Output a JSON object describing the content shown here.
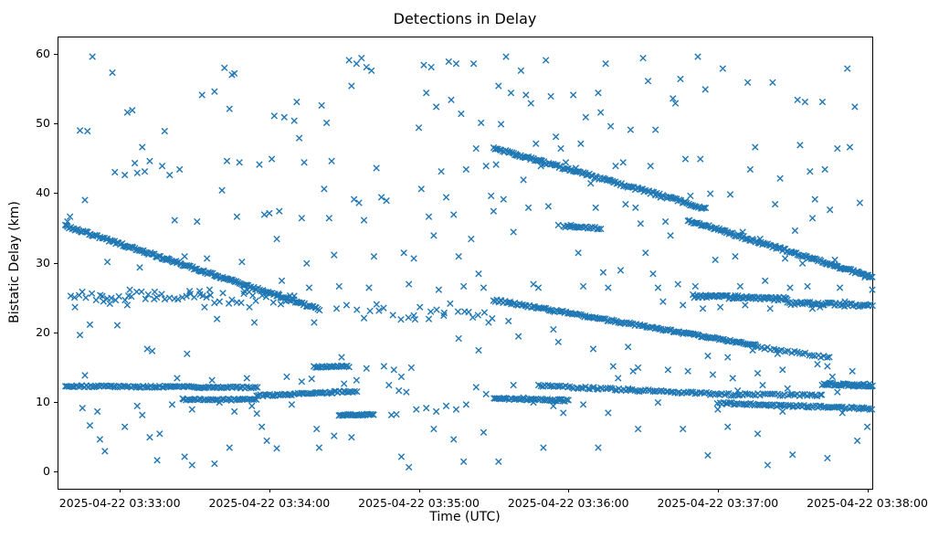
{
  "chart_data": {
    "type": "scatter",
    "title": "Detections in Delay",
    "xlabel": "Time (UTC)",
    "ylabel": "Bistatic Delay (km)",
    "marker": "x",
    "marker_color": "#1f77b4",
    "grid": false,
    "legend": null,
    "x_axis": {
      "unit": "seconds relative to 2025-04-22 03:33:00 UTC",
      "lim": [
        -25,
        302
      ],
      "ticks": [
        {
          "t": 0,
          "label": "2025-04-22 03:33:00"
        },
        {
          "t": 60,
          "label": "2025-04-22 03:34:00"
        },
        {
          "t": 120,
          "label": "2025-04-22 03:35:00"
        },
        {
          "t": 180,
          "label": "2025-04-22 03:36:00"
        },
        {
          "t": 240,
          "label": "2025-04-22 03:37:00"
        },
        {
          "t": 300,
          "label": "2025-04-22 03:38:00"
        }
      ]
    },
    "y_axis": {
      "lim": [
        -2.5,
        62.5
      ],
      "ticks": [
        0,
        10,
        20,
        30,
        40,
        50,
        60
      ]
    },
    "tracks": [
      {
        "t0": -22,
        "t1": 80,
        "y0": 35.3,
        "y1": 23.3,
        "n": 180,
        "jitter": 0.18
      },
      {
        "t0": -22,
        "t1": 55,
        "y0": 12.25,
        "y1": 12.05,
        "n": 100,
        "jitter": 0.12
      },
      {
        "t0": 25,
        "t1": 55,
        "y0": 10.35,
        "y1": 10.3,
        "n": 40,
        "jitter": 0.12
      },
      {
        "t0": 55,
        "t1": 95,
        "y0": 10.9,
        "y1": 11.5,
        "n": 55,
        "jitter": 0.15
      },
      {
        "t0": 78,
        "t1": 92,
        "y0": 15.0,
        "y1": 15.1,
        "n": 22,
        "jitter": 0.12
      },
      {
        "t0": 88,
        "t1": 102,
        "y0": 8.1,
        "y1": 8.15,
        "n": 26,
        "jitter": 0.1
      },
      {
        "t0": 150,
        "t1": 235,
        "y0": 46.5,
        "y1": 37.8,
        "n": 140,
        "jitter": 0.2
      },
      {
        "t0": 150,
        "t1": 255,
        "y0": 24.6,
        "y1": 18.1,
        "n": 160,
        "jitter": 0.15
      },
      {
        "t0": 255,
        "t1": 285,
        "y0": 18.0,
        "y1": 16.3,
        "n": 26,
        "jitter": 0.15
      },
      {
        "t0": 228,
        "t1": 302,
        "y0": 36.1,
        "y1": 27.9,
        "n": 130,
        "jitter": 0.18
      },
      {
        "t0": 230,
        "t1": 268,
        "y0": 25.2,
        "y1": 24.8,
        "n": 70,
        "jitter": 0.25
      },
      {
        "t0": 268,
        "t1": 302,
        "y0": 24.2,
        "y1": 23.8,
        "n": 50,
        "jitter": 0.25
      },
      {
        "t0": 168,
        "t1": 248,
        "y0": 12.3,
        "y1": 11.0,
        "n": 90,
        "jitter": 0.18
      },
      {
        "t0": 248,
        "t1": 282,
        "y0": 11.05,
        "y1": 10.95,
        "n": 35,
        "jitter": 0.15
      },
      {
        "t0": 240,
        "t1": 302,
        "y0": 9.8,
        "y1": 9.0,
        "n": 80,
        "jitter": 0.15
      },
      {
        "t0": 282,
        "t1": 302,
        "y0": 12.6,
        "y1": 12.3,
        "n": 40,
        "jitter": 0.2
      },
      {
        "t0": 150,
        "t1": 180,
        "y0": 10.5,
        "y1": 10.2,
        "n": 45,
        "jitter": 0.15
      },
      {
        "t0": 178,
        "t1": 193,
        "y0": 35.2,
        "y1": 34.9,
        "n": 22,
        "jitter": 0.15
      },
      {
        "t0": -20,
        "t1": 70,
        "y0": 25.1,
        "y1": 24.9,
        "n": 55,
        "jitter": 0.9
      },
      {
        "t0": 95,
        "t1": 150,
        "y0": 22.8,
        "y1": 23.0,
        "n": 20,
        "jitter": 1.2
      }
    ],
    "points": [
      [
        -11,
        59.6
      ],
      [
        -16,
        49
      ],
      [
        -13,
        48.9
      ],
      [
        -20,
        36.6
      ],
      [
        -21,
        35.9
      ],
      [
        -14,
        39
      ],
      [
        -18,
        23.6
      ],
      [
        -12,
        21.1
      ],
      [
        -16,
        19.6
      ],
      [
        -14,
        13.8
      ],
      [
        -15,
        9.1
      ],
      [
        -9,
        8.6
      ],
      [
        -12,
        6.6
      ],
      [
        -8,
        4.6
      ],
      [
        -6,
        2.9
      ],
      [
        -3,
        57.3
      ],
      [
        -2,
        43
      ],
      [
        -5,
        30.1
      ],
      [
        -1,
        21
      ],
      [
        -7,
        25.2
      ],
      [
        -4,
        24.1
      ],
      [
        3,
        51.6
      ],
      [
        5,
        51.9
      ],
      [
        2,
        42.6
      ],
      [
        7,
        42.9
      ],
      [
        9,
        46.6
      ],
      [
        6,
        44.3
      ],
      [
        12,
        44.6
      ],
      [
        10,
        43.1
      ],
      [
        8,
        29.3
      ],
      [
        4,
        26.1
      ],
      [
        14,
        25.8
      ],
      [
        3,
        23.9
      ],
      [
        11,
        17.6
      ],
      [
        13,
        17.3
      ],
      [
        7,
        9.4
      ],
      [
        9,
        8.1
      ],
      [
        2,
        6.4
      ],
      [
        12,
        4.9
      ],
      [
        15,
        1.6
      ],
      [
        18,
        48.9
      ],
      [
        17,
        43.9
      ],
      [
        20,
        42.6
      ],
      [
        24,
        43.4
      ],
      [
        22,
        36.1
      ],
      [
        19,
        30.4
      ],
      [
        26,
        30.9
      ],
      [
        28,
        25.9
      ],
      [
        27,
        16.9
      ],
      [
        23,
        13.4
      ],
      [
        21,
        9.6
      ],
      [
        29,
        8.9
      ],
      [
        16,
        5.4
      ],
      [
        26,
        2.1
      ],
      [
        29,
        0.9
      ],
      [
        33,
        54.1
      ],
      [
        38,
        54.6
      ],
      [
        31,
        35.9
      ],
      [
        35,
        30.6
      ],
      [
        32,
        25.9
      ],
      [
        36,
        26.1
      ],
      [
        34,
        23.6
      ],
      [
        39,
        21.9
      ],
      [
        37,
        13.1
      ],
      [
        40,
        9.9
      ],
      [
        42,
        58
      ],
      [
        45,
        57
      ],
      [
        46,
        57.2
      ],
      [
        44,
        52.1
      ],
      [
        48,
        44.4
      ],
      [
        43,
        44.6
      ],
      [
        41,
        40.4
      ],
      [
        47,
        36.6
      ],
      [
        49,
        30.1
      ],
      [
        50,
        25.9
      ],
      [
        52,
        23.6
      ],
      [
        51,
        13.4
      ],
      [
        53,
        9.4
      ],
      [
        55,
        8.3
      ],
      [
        57,
        6.4
      ],
      [
        59,
        4.4
      ],
      [
        54,
        21.4
      ],
      [
        58,
        36.9
      ],
      [
        56,
        44.1
      ],
      [
        60,
        37.1
      ],
      [
        46,
        8.6
      ],
      [
        38,
        1.1
      ],
      [
        44,
        3.4
      ],
      [
        62,
        51.1
      ],
      [
        66,
        50.9
      ],
      [
        61,
        44.9
      ],
      [
        64,
        37.4
      ],
      [
        63,
        33.4
      ],
      [
        65,
        27.4
      ],
      [
        68,
        24.6
      ],
      [
        67,
        13.6
      ],
      [
        69,
        9.6
      ],
      [
        71,
        53.1
      ],
      [
        70,
        50.4
      ],
      [
        72,
        47.9
      ],
      [
        74,
        44.4
      ],
      [
        73,
        36.4
      ],
      [
        75,
        29.9
      ],
      [
        76,
        26.4
      ],
      [
        78,
        21.4
      ],
      [
        77,
        13.3
      ],
      [
        79,
        6.1
      ],
      [
        81,
        52.6
      ],
      [
        83,
        50.1
      ],
      [
        85,
        44.6
      ],
      [
        82,
        40.6
      ],
      [
        84,
        36.4
      ],
      [
        86,
        31.1
      ],
      [
        88,
        26.6
      ],
      [
        87,
        23.4
      ],
      [
        89,
        16.4
      ],
      [
        90,
        12.6
      ],
      [
        80,
        3.4
      ],
      [
        63,
        3.3
      ],
      [
        73,
        12.9
      ],
      [
        86,
        5.1
      ],
      [
        92,
        59.1
      ],
      [
        95,
        58.6
      ],
      [
        97,
        59.4
      ],
      [
        99,
        58.1
      ],
      [
        93,
        55.4
      ],
      [
        101,
        57.6
      ],
      [
        94,
        39.1
      ],
      [
        96,
        38.6
      ],
      [
        98,
        36.1
      ],
      [
        103,
        43.6
      ],
      [
        105,
        39.4
      ],
      [
        107,
        38.9
      ],
      [
        91,
        23.9
      ],
      [
        100,
        26.4
      ],
      [
        102,
        30.9
      ],
      [
        104,
        23.1
      ],
      [
        106,
        15.1
      ],
      [
        108,
        12.4
      ],
      [
        110,
        14.6
      ],
      [
        112,
        11.6
      ],
      [
        109,
        8.1
      ],
      [
        111,
        8.2
      ],
      [
        113,
        13.6
      ],
      [
        115,
        11.4
      ],
      [
        117,
        14.9
      ],
      [
        119,
        8.9
      ],
      [
        114,
        31.4
      ],
      [
        116,
        26.9
      ],
      [
        118,
        22.4
      ],
      [
        120,
        49.4
      ],
      [
        95,
        13.1
      ],
      [
        99,
        14.8
      ],
      [
        116,
        0.6
      ],
      [
        113,
        2.1
      ],
      [
        93,
        4.9
      ],
      [
        118,
        30.6
      ],
      [
        122,
        58.4
      ],
      [
        125,
        58.1
      ],
      [
        123,
        54.4
      ],
      [
        127,
        52.4
      ],
      [
        129,
        43.1
      ],
      [
        121,
        40.6
      ],
      [
        124,
        36.6
      ],
      [
        126,
        33.9
      ],
      [
        128,
        26.1
      ],
      [
        130,
        22.4
      ],
      [
        132,
        58.9
      ],
      [
        135,
        58.6
      ],
      [
        133,
        53.4
      ],
      [
        137,
        51.4
      ],
      [
        139,
        43.4
      ],
      [
        131,
        39.4
      ],
      [
        134,
        36.9
      ],
      [
        136,
        30.9
      ],
      [
        138,
        26.6
      ],
      [
        140,
        22.9
      ],
      [
        142,
        58.6
      ],
      [
        145,
        50.1
      ],
      [
        143,
        46.4
      ],
      [
        147,
        43.9
      ],
      [
        149,
        39.6
      ],
      [
        141,
        33.4
      ],
      [
        144,
        28.4
      ],
      [
        146,
        26.4
      ],
      [
        148,
        21.4
      ],
      [
        150,
        37.4
      ],
      [
        123,
        9.1
      ],
      [
        127,
        8.6
      ],
      [
        131,
        9.4
      ],
      [
        135,
        8.9
      ],
      [
        139,
        9.6
      ],
      [
        143,
        12.1
      ],
      [
        147,
        11.1
      ],
      [
        126,
        6.1
      ],
      [
        134,
        4.6
      ],
      [
        138,
        1.4
      ],
      [
        146,
        5.6
      ],
      [
        124,
        21.9
      ],
      [
        136,
        19.1
      ],
      [
        144,
        17.4
      ],
      [
        152,
        55.4
      ],
      [
        155,
        59.6
      ],
      [
        157,
        54.4
      ],
      [
        153,
        49.9
      ],
      [
        159,
        45.6
      ],
      [
        151,
        44.1
      ],
      [
        154,
        39.1
      ],
      [
        158,
        34.4
      ],
      [
        161,
        57.6
      ],
      [
        163,
        54.1
      ],
      [
        165,
        52.9
      ],
      [
        167,
        47.1
      ],
      [
        169,
        43.9
      ],
      [
        162,
        41.9
      ],
      [
        164,
        37.9
      ],
      [
        171,
        59.1
      ],
      [
        173,
        53.9
      ],
      [
        175,
        48.1
      ],
      [
        177,
        46.4
      ],
      [
        179,
        44.4
      ],
      [
        172,
        38.1
      ],
      [
        166,
        26.9
      ],
      [
        168,
        26.4
      ],
      [
        174,
        20.4
      ],
      [
        176,
        18.6
      ],
      [
        156,
        21.6
      ],
      [
        160,
        19.4
      ],
      [
        170,
        3.4
      ],
      [
        152,
        1.4
      ],
      [
        158,
        12.4
      ],
      [
        166,
        9.9
      ],
      [
        174,
        9.4
      ],
      [
        178,
        8.4
      ],
      [
        162,
        10.6
      ],
      [
        176,
        35.4
      ],
      [
        182,
        54.1
      ],
      [
        185,
        47.1
      ],
      [
        187,
        50.9
      ],
      [
        183,
        43.6
      ],
      [
        189,
        41.4
      ],
      [
        181,
        35.4
      ],
      [
        184,
        31.4
      ],
      [
        186,
        26.6
      ],
      [
        190,
        17.6
      ],
      [
        192,
        54.4
      ],
      [
        195,
        58.6
      ],
      [
        193,
        51.6
      ],
      [
        197,
        49.6
      ],
      [
        199,
        43.9
      ],
      [
        191,
        37.9
      ],
      [
        194,
        28.6
      ],
      [
        196,
        26.4
      ],
      [
        198,
        15.1
      ],
      [
        200,
        13.4
      ],
      [
        202,
        44.4
      ],
      [
        205,
        49.1
      ],
      [
        203,
        38.4
      ],
      [
        207,
        37.9
      ],
      [
        209,
        35.6
      ],
      [
        201,
        28.9
      ],
      [
        204,
        17.9
      ],
      [
        206,
        14.4
      ],
      [
        208,
        6.1
      ],
      [
        210,
        59.4
      ],
      [
        186,
        9.6
      ],
      [
        196,
        8.4
      ],
      [
        204,
        11.9
      ],
      [
        208,
        14.9
      ],
      [
        192,
        3.4
      ],
      [
        212,
        56.1
      ],
      [
        215,
        49.1
      ],
      [
        213,
        43.9
      ],
      [
        217,
        39.4
      ],
      [
        219,
        35.9
      ],
      [
        211,
        31.4
      ],
      [
        214,
        28.4
      ],
      [
        216,
        26.4
      ],
      [
        218,
        24.4
      ],
      [
        220,
        14.6
      ],
      [
        222,
        53.6
      ],
      [
        225,
        56.4
      ],
      [
        223,
        52.9
      ],
      [
        227,
        44.9
      ],
      [
        229,
        39.6
      ],
      [
        221,
        33.9
      ],
      [
        224,
        26.9
      ],
      [
        226,
        23.9
      ],
      [
        228,
        14.4
      ],
      [
        230,
        11.4
      ],
      [
        232,
        59.6
      ],
      [
        235,
        54.9
      ],
      [
        233,
        44.9
      ],
      [
        237,
        39.9
      ],
      [
        239,
        30.4
      ],
      [
        231,
        26.6
      ],
      [
        234,
        23.4
      ],
      [
        236,
        16.6
      ],
      [
        238,
        13.9
      ],
      [
        240,
        8.9
      ],
      [
        226,
        6.1
      ],
      [
        236,
        2.3
      ],
      [
        216,
        9.9
      ],
      [
        242,
        57.9
      ],
      [
        245,
        39.8
      ],
      [
        243,
        34.6
      ],
      [
        247,
        30.9
      ],
      [
        249,
        26.6
      ],
      [
        241,
        23.6
      ],
      [
        244,
        16.4
      ],
      [
        246,
        13.4
      ],
      [
        248,
        11.6
      ],
      [
        252,
        55.9
      ],
      [
        255,
        46.6
      ],
      [
        253,
        43.4
      ],
      [
        257,
        33.4
      ],
      [
        259,
        27.4
      ],
      [
        251,
        23.9
      ],
      [
        254,
        17.4
      ],
      [
        256,
        14.1
      ],
      [
        258,
        12.4
      ],
      [
        260,
        0.9
      ],
      [
        262,
        55.9
      ],
      [
        265,
        42.1
      ],
      [
        263,
        38.4
      ],
      [
        267,
        30.6
      ],
      [
        269,
        26.4
      ],
      [
        261,
        23.4
      ],
      [
        264,
        16.9
      ],
      [
        266,
        14.6
      ],
      [
        268,
        11.9
      ],
      [
        270,
        2.4
      ],
      [
        244,
        6.4
      ],
      [
        256,
        5.4
      ],
      [
        266,
        8.6
      ],
      [
        250,
        34.4
      ],
      [
        272,
        53.4
      ],
      [
        275,
        53.1
      ],
      [
        273,
        46.9
      ],
      [
        277,
        43.1
      ],
      [
        279,
        39.1
      ],
      [
        271,
        34.6
      ],
      [
        274,
        29.9
      ],
      [
        276,
        26.6
      ],
      [
        278,
        23.4
      ],
      [
        280,
        15.4
      ],
      [
        282,
        53.1
      ],
      [
        285,
        37.6
      ],
      [
        283,
        43.4
      ],
      [
        287,
        30.4
      ],
      [
        289,
        26.4
      ],
      [
        281,
        23.6
      ],
      [
        284,
        15.1
      ],
      [
        286,
        13.6
      ],
      [
        288,
        11.4
      ],
      [
        290,
        8.4
      ],
      [
        292,
        57.9
      ],
      [
        295,
        52.4
      ],
      [
        293,
        46.6
      ],
      [
        297,
        38.6
      ],
      [
        299,
        27.9
      ],
      [
        291,
        24.4
      ],
      [
        294,
        14.4
      ],
      [
        296,
        12.4
      ],
      [
        298,
        9.1
      ],
      [
        300,
        6.4
      ],
      [
        284,
        1.9
      ],
      [
        296,
        4.4
      ],
      [
        288,
        46.4
      ],
      [
        278,
        36.4
      ],
      [
        302,
        26.1
      ],
      [
        301,
        12.6
      ]
    ]
  }
}
